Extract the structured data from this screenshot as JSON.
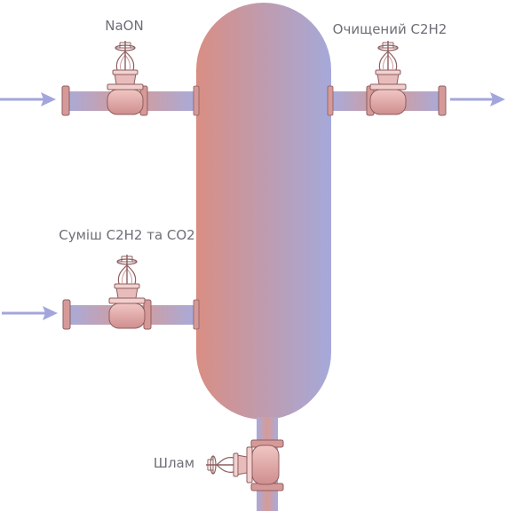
{
  "labels": {
    "naoh_inlet": "NaON",
    "purified_outlet": "Очищений C2H2",
    "mixture_inlet": "Суміш C2H2 та CO2",
    "sludge_outlet": "Шлам"
  },
  "colors": {
    "vessel_left": "#d98e83",
    "vessel_right": "#a5a9da",
    "arrow": "#a3a6dc",
    "valve_body": "#e4b4b3",
    "valve_outline": "#8e5d5f"
  }
}
